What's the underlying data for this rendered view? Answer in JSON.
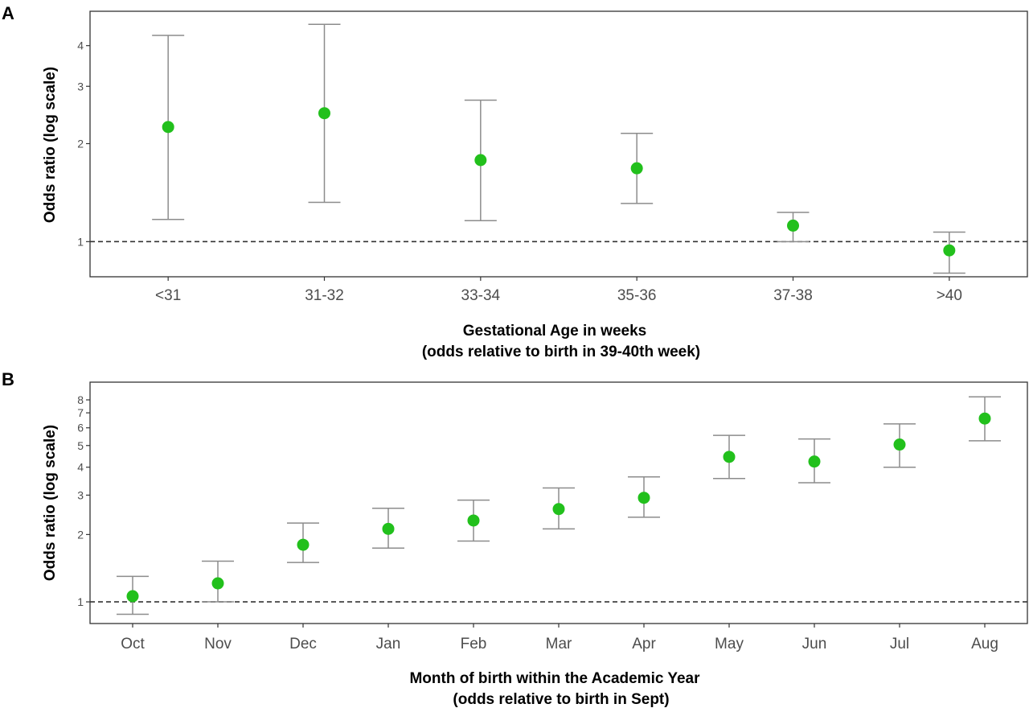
{
  "chart_data": [
    {
      "panel_label": "A",
      "type": "scatter",
      "scale": "log",
      "categories": [
        "<31",
        "31-32",
        "33-34",
        "35-36",
        "37-38",
        ">40"
      ],
      "series": [
        {
          "values": [
            2.25,
            2.48,
            1.78,
            1.68,
            1.12,
            0.94
          ],
          "ci_low": [
            1.17,
            1.32,
            1.16,
            1.31,
            1.0,
            0.8
          ],
          "ci_high": [
            4.3,
            4.65,
            2.72,
            2.15,
            1.23,
            1.07
          ],
          "color": "#22c01c"
        }
      ],
      "yticks": [
        1,
        2,
        3,
        4
      ],
      "ytick_labels": [
        "1",
        "2",
        "3",
        "4"
      ],
      "ylim": [
        0.78,
        5.1
      ],
      "reference_line": 1,
      "xlabel": "Gestational Age in weeks",
      "xlabel_line2": "(odds relative to birth in 39-40th week)",
      "ylabel": "Odds ratio (log scale)",
      "grid": false
    },
    {
      "panel_label": "B",
      "type": "scatter",
      "scale": "log",
      "categories": [
        "Oct",
        "Nov",
        "Dec",
        "Jan",
        "Feb",
        "Mar",
        "Apr",
        "May",
        "Jun",
        "Jul",
        "Aug"
      ],
      "series": [
        {
          "values": [
            1.06,
            1.21,
            1.8,
            2.12,
            2.31,
            2.6,
            2.92,
            4.45,
            4.24,
            5.05,
            6.6
          ],
          "ci_low": [
            0.88,
            1.0,
            1.5,
            1.74,
            1.87,
            2.12,
            2.39,
            3.56,
            3.41,
            4.0,
            5.25
          ],
          "ci_high": [
            1.3,
            1.52,
            2.25,
            2.62,
            2.85,
            3.23,
            3.62,
            5.55,
            5.35,
            6.25,
            8.25
          ],
          "color": "#22c01c"
        }
      ],
      "yticks": [
        1,
        2,
        3,
        4,
        5,
        6,
        7,
        8
      ],
      "ytick_labels": [
        "1",
        "2",
        "3",
        "4",
        "5",
        "6",
        "7",
        "8"
      ],
      "ylim": [
        0.8,
        9.6
      ],
      "reference_line": 1,
      "xlabel": "Month of birth within the Academic Year",
      "xlabel_line2": "(odds relative to birth in Sept)",
      "ylabel": "Odds ratio (log scale)",
      "grid": false
    }
  ]
}
